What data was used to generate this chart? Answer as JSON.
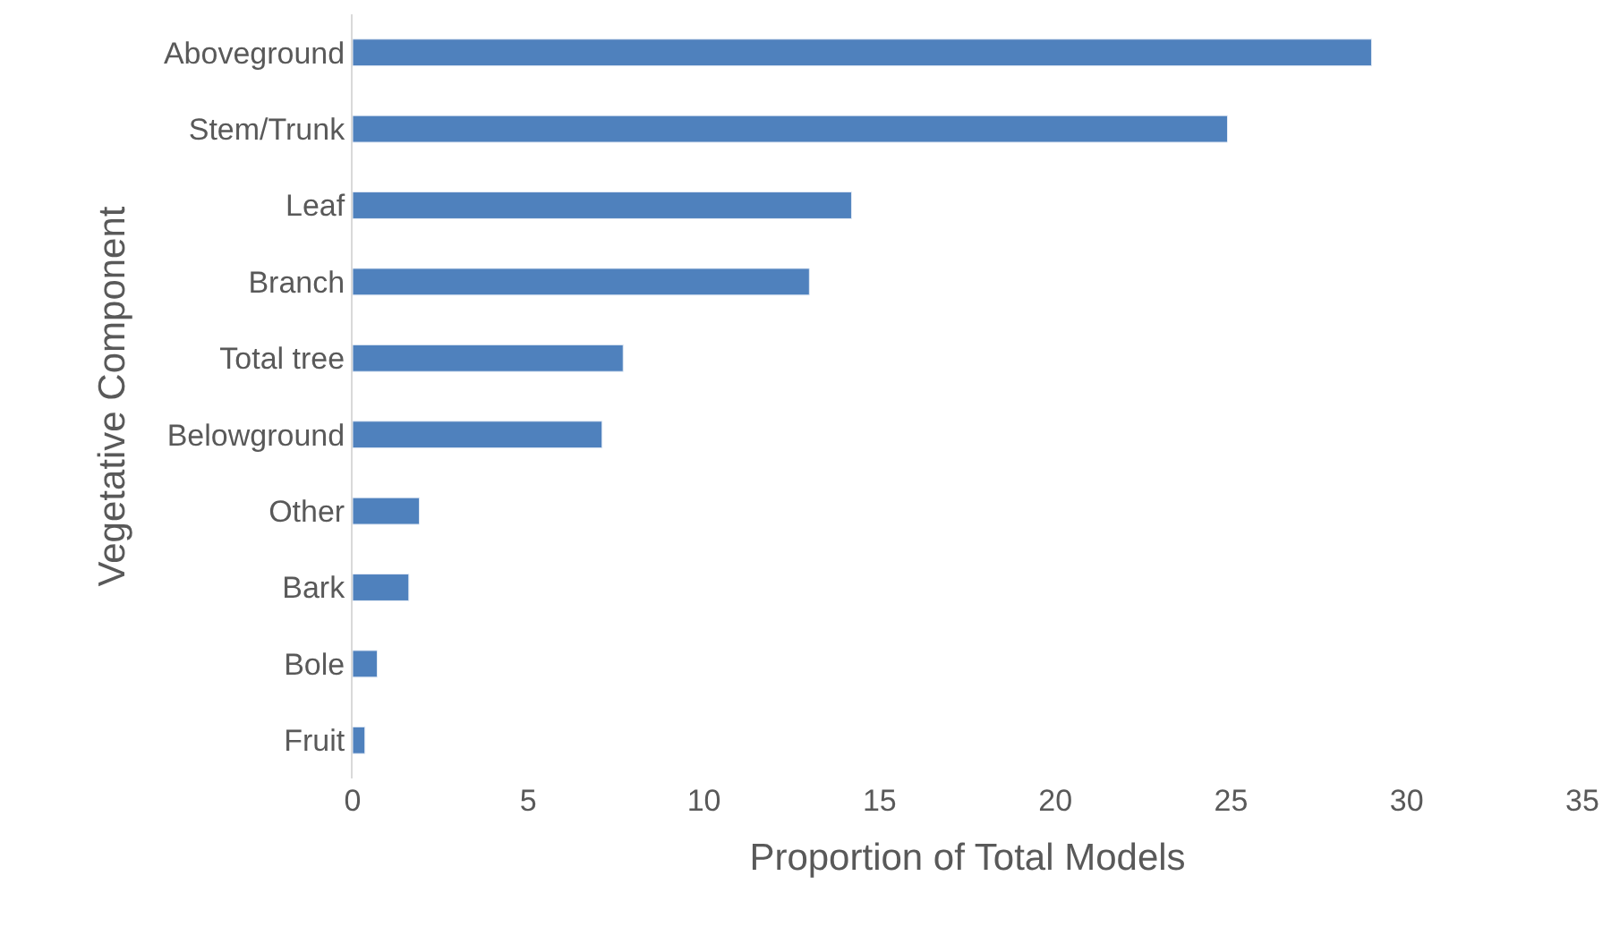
{
  "chart_data": {
    "type": "bar",
    "orientation": "horizontal",
    "xlabel": "Proportion of Total Models",
    "ylabel": "Vegetative Component",
    "categories": [
      "Aboveground",
      "Stem/Trunk",
      "Leaf",
      "Branch",
      "Total tree",
      "Belowground",
      "Other",
      "Bark",
      "Bole",
      "Fruit"
    ],
    "values": [
      29.0,
      24.9,
      14.2,
      13.0,
      7.7,
      7.1,
      1.9,
      1.6,
      0.7,
      0.35
    ],
    "color": "#4f81bd",
    "xlim": [
      0,
      35
    ],
    "xticks": [
      0,
      5,
      10,
      15,
      20,
      25,
      30,
      35
    ],
    "legend": false
  }
}
